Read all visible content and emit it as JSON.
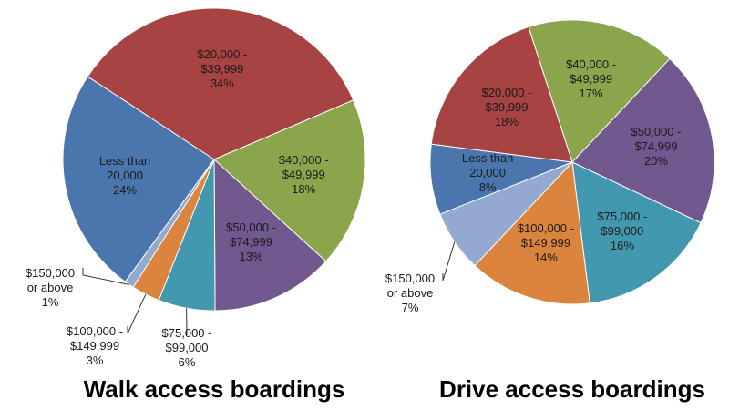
{
  "chart_data": [
    {
      "type": "pie",
      "title": "Walk access boardings",
      "categories": [
        "Less than 20,000",
        "$20,000 - $39,999",
        "$40,000 - $49,999",
        "$50,000 - $74,999",
        "$75,000 - $99,000",
        "$100,000 - $149,999",
        "$150,000 or above"
      ],
      "values": [
        24,
        34,
        18,
        13,
        6,
        3,
        1
      ],
      "value_labels": [
        "24%",
        "34%",
        "18%",
        "13%",
        "6%",
        "3%",
        "1%"
      ],
      "colors": [
        "#4a76ad",
        "#a84343",
        "#8aa54b",
        "#71588f",
        "#4198af",
        "#db843d",
        "#93a9cf"
      ]
    },
    {
      "type": "pie",
      "title": "Drive access boardings",
      "categories": [
        "Less than 20,000",
        "$20,000 - $39,999",
        "$40,000 - $49,999",
        "$50,000 - $74,999",
        "$75,000 - $99,000",
        "$100,000 - $149,999",
        "$150,000 or above"
      ],
      "values": [
        8,
        18,
        17,
        20,
        16,
        14,
        7
      ],
      "value_labels": [
        "8%",
        "18%",
        "17%",
        "20%",
        "16%",
        "14%",
        "7%"
      ],
      "colors": [
        "#4a76ad",
        "#a84343",
        "#8aa54b",
        "#71588f",
        "#4198af",
        "#db843d",
        "#93a9cf"
      ]
    }
  ]
}
